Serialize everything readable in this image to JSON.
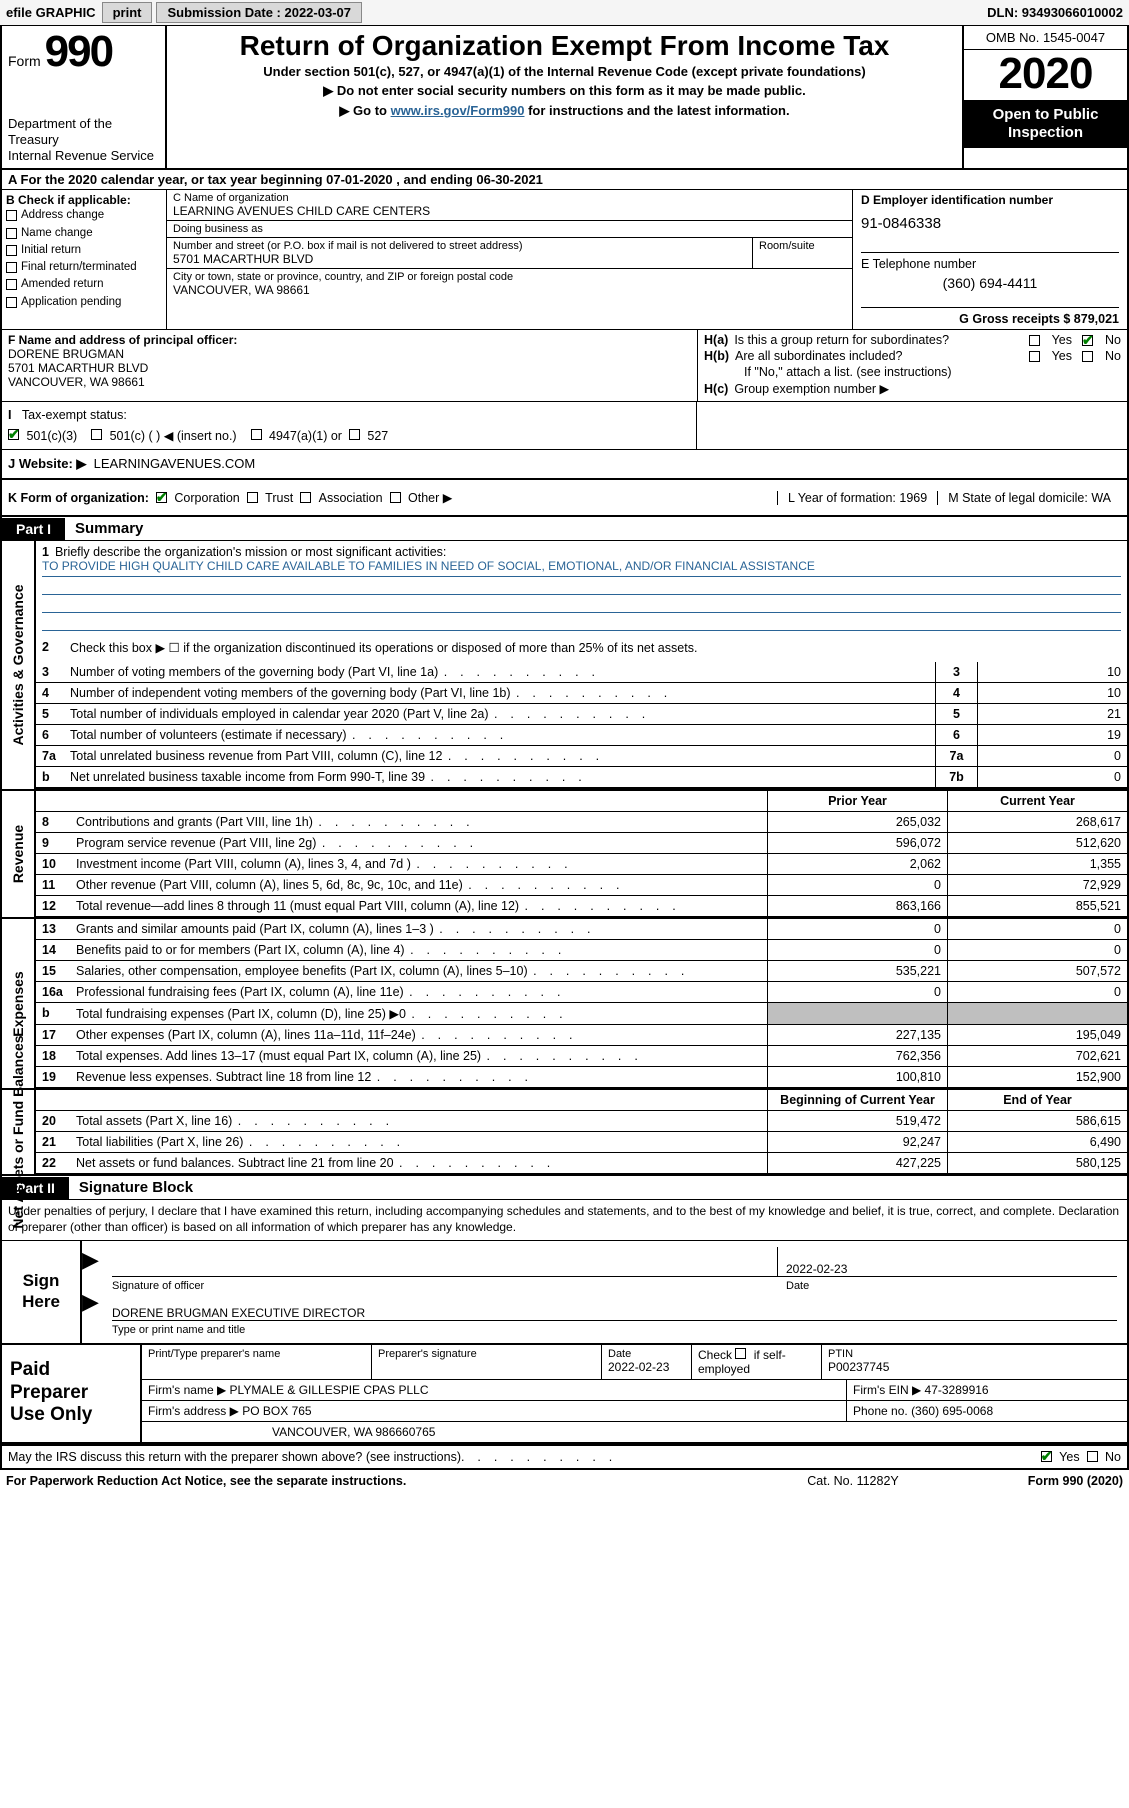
{
  "colors": {
    "accent_black": "#000000",
    "link_blue": "#2a6496",
    "check_green": "#008000",
    "grey_fill": "#bfbfbf",
    "toolbar_bg": "#f5f5f5",
    "button_bg": "#d9d9d9"
  },
  "topbar": {
    "efile_label": "efile GRAPHIC",
    "print_label": "print",
    "submission_label": "Submission Date : 2022-03-07",
    "dln_label": "DLN: 93493066010002"
  },
  "header": {
    "form_word": "Form",
    "form_no": "990",
    "dept": "Department of the Treasury\nInternal Revenue Service",
    "title": "Return of Organization Exempt From Income Tax",
    "sub1": "Under section 501(c), 527, or 4947(a)(1) of the Internal Revenue Code (except private foundations)",
    "sub2": "▶ Do not enter social security numbers on this form as it may be made public.",
    "sub3_pre": "▶ Go to ",
    "sub3_link": "www.irs.gov/Form990",
    "sub3_post": " for instructions and the latest information.",
    "omb": "OMB No. 1545-0047",
    "year": "2020",
    "open": "Open to Public Inspection"
  },
  "lineA": {
    "text": "A For the 2020 calendar year, or tax year beginning 07-01-2020   , and ending 06-30-2021"
  },
  "boxB": {
    "label": "B Check if applicable:",
    "items": [
      "Address change",
      "Name change",
      "Initial return",
      "Final return/terminated",
      "Amended return",
      "Application pending"
    ]
  },
  "boxC": {
    "name_label": "C Name of organization",
    "name": "LEARNING AVENUES CHILD CARE CENTERS",
    "dba_label": "Doing business as",
    "dba": "",
    "street_label": "Number and street (or P.O. box if mail is not delivered to street address)",
    "room_label": "Room/suite",
    "street": "5701 MACARTHUR BLVD",
    "city_label": "City or town, state or province, country, and ZIP or foreign postal code",
    "city": "VANCOUVER, WA  98661"
  },
  "boxD": {
    "label": "D Employer identification number",
    "ein": "91-0846338"
  },
  "boxE": {
    "label": "E Telephone number",
    "phone": "(360) 694-4411"
  },
  "boxG": {
    "label": "G Gross receipts $ 879,021"
  },
  "boxF": {
    "label": "F  Name and address of principal officer:",
    "name": "DORENE BRUGMAN",
    "addr1": "5701 MACARTHUR BLVD",
    "addr2": "VANCOUVER, WA  98661"
  },
  "boxH": {
    "a_label": "H(a)",
    "a_text": "Is this a group return for subordinates?",
    "a_yes": "Yes",
    "a_no": "No",
    "b_label": "H(b)",
    "b_text": "Are all subordinates included?",
    "b_note": "If \"No,\" attach a list. (see instructions)",
    "c_label": "H(c)",
    "c_text": "Group exemption number ▶"
  },
  "boxI": {
    "label": "Tax-exempt status:",
    "opt1": "501(c)(3)",
    "opt2": "501(c) (   ) ◀ (insert no.)",
    "opt3": "4947(a)(1) or",
    "opt4": "527"
  },
  "boxJ": {
    "label": "J  Website: ▶",
    "value": "LEARNINGAVENUES.COM"
  },
  "boxK": {
    "label": "K Form of organization:",
    "opts": [
      "Corporation",
      "Trust",
      "Association",
      "Other ▶"
    ]
  },
  "boxL": {
    "label": "L Year of formation: 1969"
  },
  "boxM": {
    "label": "M State of legal domicile: WA"
  },
  "partI": {
    "tag": "Part I",
    "title": "Summary",
    "q1_label": "1",
    "q1_text": "Briefly describe the organization's mission or most significant activities:",
    "q1_value": "TO PROVIDE HIGH QUALITY CHILD CARE AVAILABLE TO FAMILIES IN NEED OF SOCIAL, EMOTIONAL, AND/OR FINANCIAL ASSISTANCE",
    "q2_label": "2",
    "q2_text": "Check this box ▶ ☐  if the organization discontinued its operations or disposed of more than 25% of its net assets.",
    "gov_rows": [
      {
        "n": "3",
        "t": "Number of voting members of the governing body (Part VI, line 1a)",
        "box": "3",
        "val": "10"
      },
      {
        "n": "4",
        "t": "Number of independent voting members of the governing body (Part VI, line 1b)",
        "box": "4",
        "val": "10"
      },
      {
        "n": "5",
        "t": "Total number of individuals employed in calendar year 2020 (Part V, line 2a)",
        "box": "5",
        "val": "21"
      },
      {
        "n": "6",
        "t": "Total number of volunteers (estimate if necessary)",
        "box": "6",
        "val": "19"
      },
      {
        "n": "7a",
        "t": "Total unrelated business revenue from Part VIII, column (C), line 12",
        "box": "7a",
        "val": "0"
      },
      {
        "n": "b",
        "t": "Net unrelated business taxable income from Form 990-T, line 39",
        "box": "7b",
        "val": "0"
      }
    ],
    "ythdr_prior": "Prior Year",
    "ythdr_curr": "Current Year",
    "revenue_rows": [
      {
        "n": "8",
        "t": "Contributions and grants (Part VIII, line 1h)",
        "c1": "265,032",
        "c2": "268,617"
      },
      {
        "n": "9",
        "t": "Program service revenue (Part VIII, line 2g)",
        "c1": "596,072",
        "c2": "512,620"
      },
      {
        "n": "10",
        "t": "Investment income (Part VIII, column (A), lines 3, 4, and 7d )",
        "c1": "2,062",
        "c2": "1,355"
      },
      {
        "n": "11",
        "t": "Other revenue (Part VIII, column (A), lines 5, 6d, 8c, 9c, 10c, and 11e)",
        "c1": "0",
        "c2": "72,929"
      },
      {
        "n": "12",
        "t": "Total revenue—add lines 8 through 11 (must equal Part VIII, column (A), line 12)",
        "c1": "863,166",
        "c2": "855,521"
      }
    ],
    "expense_rows": [
      {
        "n": "13",
        "t": "Grants and similar amounts paid (Part IX, column (A), lines 1–3 )",
        "c1": "0",
        "c2": "0"
      },
      {
        "n": "14",
        "t": "Benefits paid to or for members (Part IX, column (A), line 4)",
        "c1": "0",
        "c2": "0"
      },
      {
        "n": "15",
        "t": "Salaries, other compensation, employee benefits (Part IX, column (A), lines 5–10)",
        "c1": "535,221",
        "c2": "507,572"
      },
      {
        "n": "16a",
        "t": "Professional fundraising fees (Part IX, column (A), line 11e)",
        "c1": "0",
        "c2": "0"
      },
      {
        "n": "b",
        "t": "Total fundraising expenses (Part IX, column (D), line 25) ▶0",
        "c1": "grey",
        "c2": "grey"
      },
      {
        "n": "17",
        "t": "Other expenses (Part IX, column (A), lines 11a–11d, 11f–24e)",
        "c1": "227,135",
        "c2": "195,049"
      },
      {
        "n": "18",
        "t": "Total expenses. Add lines 13–17 (must equal Part IX, column (A), line 25)",
        "c1": "762,356",
        "c2": "702,621"
      },
      {
        "n": "19",
        "t": "Revenue less expenses. Subtract line 18 from line 12",
        "c1": "100,810",
        "c2": "152,900"
      }
    ],
    "net_hdr_c1": "Beginning of Current Year",
    "net_hdr_c2": "End of Year",
    "net_rows": [
      {
        "n": "20",
        "t": "Total assets (Part X, line 16)",
        "c1": "519,472",
        "c2": "586,615"
      },
      {
        "n": "21",
        "t": "Total liabilities (Part X, line 26)",
        "c1": "92,247",
        "c2": "6,490"
      },
      {
        "n": "22",
        "t": "Net assets or fund balances. Subtract line 21 from line 20",
        "c1": "427,225",
        "c2": "580,125"
      }
    ],
    "side_labels": {
      "gov": "Activities & Governance",
      "rev": "Revenue",
      "exp": "Expenses",
      "net": "Net Assets or Fund Balances"
    }
  },
  "partII": {
    "tag": "Part II",
    "title": "Signature Block",
    "jurat": "Under penalties of perjury, I declare that I have examined this return, including accompanying schedules and statements, and to the best of my knowledge and belief, it is true, correct, and complete. Declaration of preparer (other than officer) is based on all information of which preparer has any knowledge.",
    "sign_here": "Sign Here",
    "sig_officer_label": "Signature of officer",
    "sig_date_label": "Date",
    "sig_date": "2022-02-23",
    "typed_name": "DORENE BRUGMAN  EXECUTIVE DIRECTOR",
    "typed_label": "Type or print name and title"
  },
  "preparer": {
    "left": "Paid Preparer Use Only",
    "r1": {
      "c1_lab": "Print/Type preparer's name",
      "c1": "",
      "c2_lab": "Preparer's signature",
      "c2": "",
      "c3_lab": "Date",
      "c3": "2022-02-23",
      "c4_lab_a": "Check",
      "c4_lab_b": "if self-employed",
      "c5_lab": "PTIN",
      "c5": "P00237745"
    },
    "r2": {
      "lab": "Firm's name    ▶",
      "val": "PLYMALE & GILLESPIE CPAS PLLC",
      "ein_lab": "Firm's EIN ▶",
      "ein": "47-3289916"
    },
    "r3": {
      "lab": "Firm's address ▶",
      "val": "PO BOX 765",
      "ph_lab": "Phone no.",
      "ph": "(360) 695-0068"
    },
    "r4": {
      "val": "VANCOUVER, WA  986660765"
    }
  },
  "discuss": {
    "text": "May the IRS discuss this return with the preparer shown above? (see instructions)",
    "yes": "Yes",
    "no": "No"
  },
  "footer": {
    "left": "For Paperwork Reduction Act Notice, see the separate instructions.",
    "mid": "Cat. No. 11282Y",
    "right": "Form 990 (2020)"
  }
}
